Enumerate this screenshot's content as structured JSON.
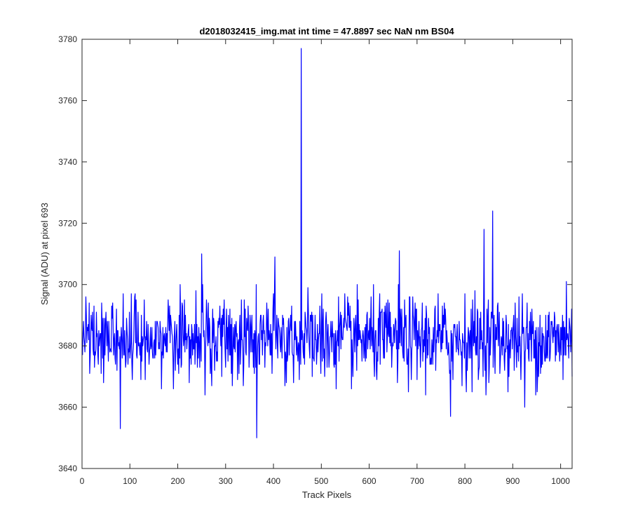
{
  "chart_data": {
    "type": "line",
    "title": "d2018032415_img.mat int time = 47.8897 sec  NaN nm BS04",
    "xlabel": "Track Pixels",
    "ylabel": "Signal (ADU) at pixel 693",
    "xlim": [
      0,
      1024
    ],
    "ylim": [
      3640,
      3780
    ],
    "x_ticks": [
      0,
      100,
      200,
      300,
      400,
      500,
      600,
      700,
      800,
      900,
      1000
    ],
    "y_ticks": [
      3640,
      3660,
      3680,
      3700,
      3720,
      3740,
      3760,
      3780
    ],
    "grid": false,
    "box": true,
    "series": [
      {
        "color": "#0000ff",
        "x_start": 1,
        "x_step": 1,
        "count": 1024,
        "baseline_mean": 3682,
        "noise_sd": 7,
        "notable_points": [
          {
            "x": 8,
            "y": 3696
          },
          {
            "x": 80,
            "y": 3653
          },
          {
            "x": 180,
            "y": 3695
          },
          {
            "x": 250,
            "y": 3710
          },
          {
            "x": 365,
            "y": 3650
          },
          {
            "x": 403,
            "y": 3709
          },
          {
            "x": 458,
            "y": 3777
          },
          {
            "x": 663,
            "y": 3711
          },
          {
            "x": 770,
            "y": 3657
          },
          {
            "x": 840,
            "y": 3718
          },
          {
            "x": 858,
            "y": 3724
          },
          {
            "x": 925,
            "y": 3660
          },
          {
            "x": 1012,
            "y": 3701
          }
        ]
      }
    ]
  }
}
